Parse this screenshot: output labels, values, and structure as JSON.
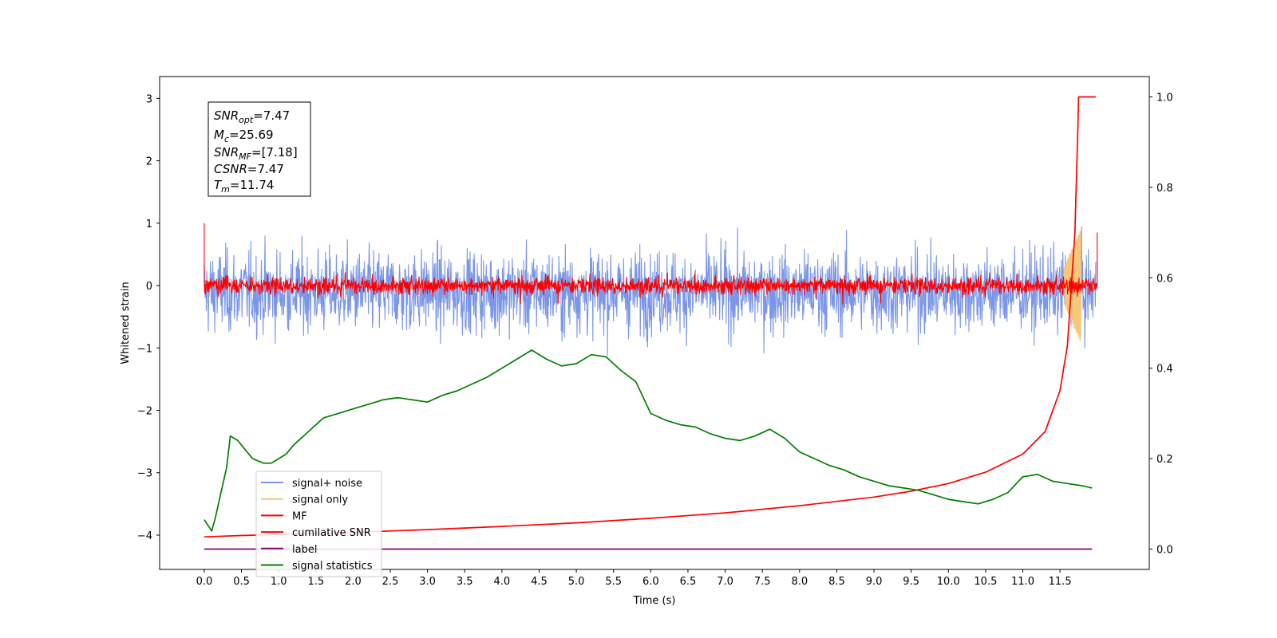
{
  "chart_data": {
    "type": "line",
    "xlabel": "Time (s)",
    "ylabel": "Whitened strain",
    "xlim": [
      -0.6,
      12.7
    ],
    "ylim": [
      -4.55,
      3.35
    ],
    "y2lim": [
      -0.045,
      1.045
    ],
    "xticks": [
      "0.0",
      "0.5",
      "1.0",
      "1.5",
      "2.0",
      "2.5",
      "3.0",
      "3.5",
      "4.0",
      "4.5",
      "5.0",
      "5.5",
      "6.0",
      "6.5",
      "7.0",
      "7.5",
      "8.0",
      "8.5",
      "9.0",
      "9.5",
      "10.0",
      "10.5",
      "11.0",
      "11.5"
    ],
    "yticks": [
      "3",
      "2",
      "1",
      "0",
      "−1",
      "−2",
      "−3",
      "−4"
    ],
    "y2ticks": [
      "1.0",
      "0.8",
      "0.6",
      "0.4",
      "0.2",
      "0.0"
    ],
    "grid": false,
    "legend_position": "lower-left",
    "annotation": {
      "snr_opt": {
        "sym": "SNR",
        "sub": "opt",
        "val": "=7.47"
      },
      "mc": {
        "sym": "M",
        "sub": "c",
        "val": "=25.69"
      },
      "snr_mf": {
        "sym": "SNR",
        "sub": "MF",
        "val": "=[7.18]"
      },
      "csnr": {
        "sym": "CSNR",
        "sub": "",
        "val": "=7.47"
      },
      "tm": {
        "sym": "T",
        "sub": "m",
        "val": "=11.74"
      }
    },
    "series": [
      {
        "name": "signal+ noise",
        "color": "#7b96e8",
        "axis": "left",
        "kind": "noise",
        "x_range": [
          0.0,
          11.98
        ],
        "center": -0.1,
        "amplitude": 1.0
      },
      {
        "name": "signal only",
        "color": "#f5c87a",
        "axis": "left",
        "kind": "chirp",
        "x_range": [
          11.55,
          11.78
        ],
        "amplitude": 0.9
      },
      {
        "name": "MF",
        "color": "#ff0000",
        "axis": "left",
        "kind": "noise",
        "x_range": [
          0.0,
          12.0
        ],
        "center": 0.0,
        "amplitude": 0.2
      },
      {
        "name": "cumilative SNR",
        "color": "#ff0000",
        "axis": "right",
        "x": [
          0.0,
          0.5,
          1.0,
          2.0,
          3.0,
          4.0,
          5.0,
          6.0,
          7.0,
          8.0,
          9.0,
          9.5,
          10.0,
          10.5,
          11.0,
          11.3,
          11.5,
          11.6,
          11.7,
          11.74,
          11.75,
          11.98
        ],
        "y": [
          0.027,
          0.03,
          0.032,
          0.037,
          0.043,
          0.05,
          0.058,
          0.068,
          0.08,
          0.096,
          0.115,
          0.128,
          0.145,
          0.17,
          0.21,
          0.26,
          0.35,
          0.45,
          0.7,
          0.93,
          1.0,
          1.0
        ]
      },
      {
        "name": "label",
        "color": "#800080",
        "axis": "right",
        "x": [
          0.0,
          11.93
        ],
        "y": [
          0.0,
          0.0
        ]
      },
      {
        "name": "signal statistics",
        "color": "#008000",
        "axis": "right",
        "x": [
          0.0,
          0.1,
          0.15,
          0.3,
          0.35,
          0.45,
          0.55,
          0.65,
          0.8,
          0.9,
          1.0,
          1.1,
          1.2,
          1.4,
          1.6,
          1.8,
          2.0,
          2.2,
          2.4,
          2.6,
          2.8,
          3.0,
          3.2,
          3.4,
          3.6,
          3.8,
          4.0,
          4.2,
          4.4,
          4.6,
          4.8,
          5.0,
          5.2,
          5.4,
          5.6,
          5.8,
          6.0,
          6.2,
          6.4,
          6.6,
          6.8,
          7.0,
          7.2,
          7.4,
          7.6,
          7.8,
          8.0,
          8.2,
          8.4,
          8.6,
          8.8,
          9.0,
          9.2,
          9.4,
          9.6,
          9.8,
          10.0,
          10.2,
          10.4,
          10.6,
          10.8,
          11.0,
          11.2,
          11.4,
          11.6,
          11.8,
          11.93
        ],
        "y": [
          0.065,
          0.04,
          0.07,
          0.18,
          0.25,
          0.24,
          0.22,
          0.2,
          0.19,
          0.19,
          0.2,
          0.21,
          0.23,
          0.26,
          0.29,
          0.3,
          0.31,
          0.32,
          0.33,
          0.335,
          0.33,
          0.325,
          0.34,
          0.35,
          0.365,
          0.38,
          0.4,
          0.42,
          0.44,
          0.42,
          0.405,
          0.41,
          0.43,
          0.425,
          0.395,
          0.37,
          0.3,
          0.285,
          0.275,
          0.27,
          0.255,
          0.245,
          0.24,
          0.25,
          0.265,
          0.245,
          0.215,
          0.2,
          0.185,
          0.175,
          0.16,
          0.15,
          0.14,
          0.135,
          0.13,
          0.12,
          0.11,
          0.105,
          0.1,
          0.11,
          0.125,
          0.16,
          0.165,
          0.15,
          0.145,
          0.14,
          0.135
        ]
      }
    ]
  }
}
